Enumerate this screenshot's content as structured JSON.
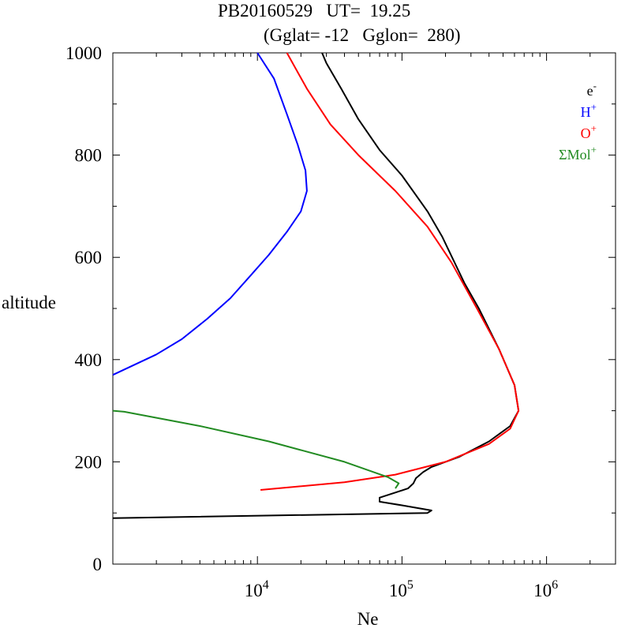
{
  "title_line1": "PB20160529   UT=  19.25",
  "title_line2": "(Gglat= -12   Gglon=  280)",
  "chart_data": {
    "type": "line",
    "xlabel": "Ne",
    "ylabel": "altitude",
    "xscale": "log",
    "xlim": [
      1000,
      3000000
    ],
    "ylim": [
      0,
      1000
    ],
    "x_ticks": [
      {
        "value": 10000,
        "base": "10",
        "exp": "4"
      },
      {
        "value": 100000,
        "base": "10",
        "exp": "5"
      },
      {
        "value": 1000000,
        "base": "10",
        "exp": "6"
      }
    ],
    "y_ticks": [
      0,
      200,
      400,
      600,
      800,
      1000
    ],
    "grid": false,
    "legend_placement": "top-right",
    "series": [
      {
        "name": "e",
        "sup": "-",
        "color": "#000000",
        "points": [
          [
            1000,
            90
          ],
          [
            150000,
            100
          ],
          [
            160000,
            105
          ],
          [
            100000,
            115
          ],
          [
            70000,
            122
          ],
          [
            70000,
            130
          ],
          [
            90000,
            140
          ],
          [
            110000,
            148
          ],
          [
            120000,
            158
          ],
          [
            125000,
            168
          ],
          [
            140000,
            180
          ],
          [
            160000,
            190
          ],
          [
            250000,
            210
          ],
          [
            400000,
            240
          ],
          [
            560000,
            270
          ],
          [
            640000,
            300
          ],
          [
            600000,
            350
          ],
          [
            470000,
            420
          ],
          [
            340000,
            500
          ],
          [
            270000,
            550
          ],
          [
            190000,
            640
          ],
          [
            150000,
            690
          ],
          [
            100000,
            760
          ],
          [
            70000,
            810
          ],
          [
            50000,
            870
          ],
          [
            38000,
            930
          ],
          [
            30000,
            980
          ],
          [
            28000,
            1000
          ]
        ]
      },
      {
        "name": "H",
        "sup": "+",
        "color": "#0000ff",
        "points": [
          [
            1000,
            370
          ],
          [
            2000,
            410
          ],
          [
            3000,
            440
          ],
          [
            4500,
            480
          ],
          [
            6500,
            520
          ],
          [
            9000,
            565
          ],
          [
            12000,
            605
          ],
          [
            16000,
            650
          ],
          [
            20000,
            690
          ],
          [
            22000,
            730
          ],
          [
            21500,
            770
          ],
          [
            19000,
            820
          ],
          [
            16000,
            880
          ],
          [
            13000,
            950
          ],
          [
            10000,
            1000
          ]
        ]
      },
      {
        "name": "O",
        "sup": "+",
        "color": "#ff0000",
        "points": [
          [
            10500,
            145
          ],
          [
            40000,
            160
          ],
          [
            90000,
            175
          ],
          [
            200000,
            200
          ],
          [
            400000,
            235
          ],
          [
            560000,
            265
          ],
          [
            640000,
            300
          ],
          [
            600000,
            350
          ],
          [
            470000,
            420
          ],
          [
            330000,
            500
          ],
          [
            220000,
            590
          ],
          [
            150000,
            660
          ],
          [
            90000,
            730
          ],
          [
            50000,
            800
          ],
          [
            32000,
            860
          ],
          [
            22000,
            930
          ],
          [
            16000,
            1000
          ]
        ]
      },
      {
        "name": "ΣMol",
        "sup": "+",
        "color": "#228b22",
        "points": [
          [
            1000,
            300
          ],
          [
            1200,
            298
          ],
          [
            4000,
            270
          ],
          [
            12000,
            240
          ],
          [
            40000,
            200
          ],
          [
            80000,
            170
          ],
          [
            95000,
            158
          ],
          [
            90000,
            148
          ]
        ]
      }
    ]
  }
}
